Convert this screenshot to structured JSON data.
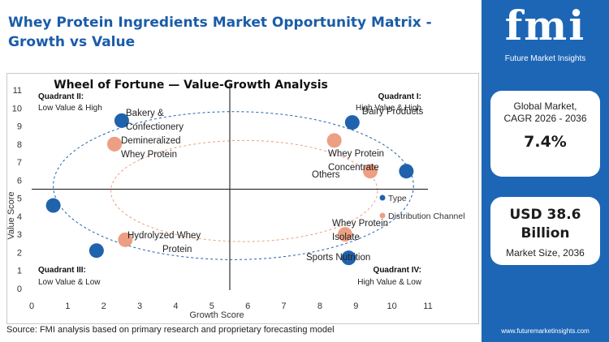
{
  "header": {
    "title": "Whey Protein Ingredients Market Opportunity Matrix - Growth vs Value"
  },
  "sidebar": {
    "logo_text": "fmi",
    "logo_subtitle": "Future Market Insights",
    "cagr_label_line1": "Global Market,",
    "cagr_label_line2": "CAGR 2026 - 2036",
    "cagr_value": "7.4%",
    "size_value_line1": "USD 38.6",
    "size_value_line2": "Billion",
    "size_label": "Market Size, 2036",
    "website": "www.futuremarketinsights.com",
    "accent_color": "#1d66b5"
  },
  "footer": {
    "source": "Source: FMI analysis based on primary research and proprietary forecasting model"
  },
  "chart_data": {
    "type": "scatter",
    "title": "Wheel of Fortune — Value-Growth Analysis",
    "xlabel": "Growth Score",
    "ylabel": "Value Score",
    "xlim": [
      0,
      11
    ],
    "ylim": [
      0,
      11
    ],
    "xticks": [
      "0",
      "1",
      "2",
      "3",
      "4",
      "5",
      "6",
      "7",
      "8",
      "9",
      "10",
      "11"
    ],
    "yticks": [
      "0",
      "1",
      "2",
      "3",
      "4",
      "5",
      "6",
      "7",
      "8",
      "9",
      "10",
      "11"
    ],
    "grid": false,
    "divider": {
      "x": 5.5,
      "y": 5.5
    },
    "quadrants": [
      {
        "name": "Quadrant II:",
        "desc": "Low Value & High",
        "position": "top-left"
      },
      {
        "name": "Quadrant I:",
        "desc": "High Value & High",
        "position": "top-right"
      },
      {
        "name": "Quadrant III:",
        "desc": "Low Value & Low",
        "position": "bottom-left"
      },
      {
        "name": "Quadrant IV:",
        "desc": "High Value & Low",
        "position": "bottom-right"
      }
    ],
    "series": [
      {
        "name": "Type",
        "color": "#1f63ad",
        "points": [
          {
            "label": "",
            "x": 2.5,
            "y": 9.3
          },
          {
            "label": "Dairy Products",
            "x": 8.9,
            "y": 9.2
          },
          {
            "label": "Others",
            "x": 10.4,
            "y": 6.5
          },
          {
            "label": "",
            "x": 0.6,
            "y": 4.6
          },
          {
            "label": "",
            "x": 1.8,
            "y": 2.1
          },
          {
            "label": "Sports Nutrition",
            "x": 8.8,
            "y": 1.7
          }
        ]
      },
      {
        "name": "Distribution Channel",
        "color": "#ed9f84",
        "points": [
          {
            "label": "Bakery & Confectionery",
            "x": 2.3,
            "y": 8.0
          },
          {
            "label": "Demineralized Whey Protein",
            "x": 2.3,
            "y": 8.0
          },
          {
            "label": "Whey Protein Concentrate",
            "x": 8.4,
            "y": 8.2
          },
          {
            "label": "",
            "x": 9.4,
            "y": 6.5
          },
          {
            "label": "Whey Protein Isolate",
            "x": 8.7,
            "y": 3.0
          },
          {
            "label": "Hydrolyzed Whey Protein",
            "x": 2.6,
            "y": 2.7
          }
        ]
      }
    ]
  }
}
